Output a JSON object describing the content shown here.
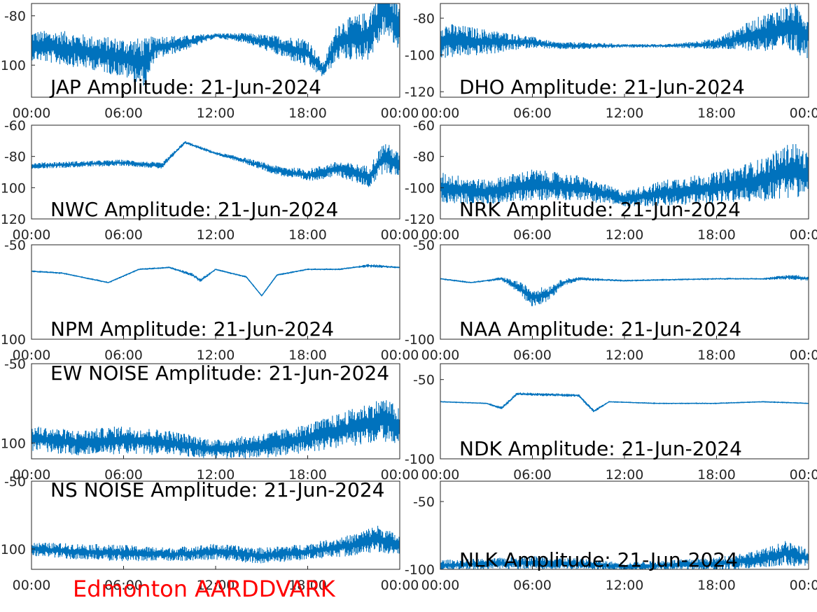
{
  "figure": {
    "station_label": "Edmonton AARDDVARK",
    "station_label_color": "#ff0000",
    "series_color": "#0072bd",
    "x_tick_labels": [
      "00:00",
      "06:00",
      "12:00",
      "18:00",
      "00:00"
    ]
  },
  "chart_data": [
    {
      "type": "line",
      "title": "JAP Amplitude: 21-Jun-2024",
      "y_tick_labels": [
        "-80",
        "-100"
      ],
      "ylim": [
        -113,
        -75
      ],
      "x": [
        "00:00",
        "02:00",
        "04:00",
        "06:00",
        "07:30",
        "08:00",
        "10:00",
        "12:00",
        "14:00",
        "16:00",
        "18:00",
        "19:00",
        "20:00",
        "22:00",
        "23:00",
        "24:00"
      ],
      "values": [
        -92,
        -93,
        -95,
        -97,
        -99,
        -93,
        -91,
        -88,
        -89,
        -92,
        -95,
        -102,
        -90,
        -88,
        -76,
        -85
      ],
      "noise_band": [
        6,
        7,
        7,
        8,
        10,
        5,
        3,
        1,
        2,
        4,
        6,
        3,
        8,
        10,
        12,
        10
      ]
    },
    {
      "type": "line",
      "title": "DHO Amplitude: 21-Jun-2024",
      "y_tick_labels": [
        "-80",
        "-100",
        "-120"
      ],
      "ylim": [
        -123,
        -72
      ],
      "x": [
        "00:00",
        "03:00",
        "06:00",
        "07:30",
        "09:00",
        "12:00",
        "15:00",
        "18:00",
        "21:00",
        "23:00",
        "24:00"
      ],
      "values": [
        -92,
        -93,
        -93,
        -95,
        -95,
        -95,
        -95,
        -94,
        -88,
        -85,
        -90
      ],
      "noise_band": [
        10,
        7,
        3,
        2,
        2,
        1,
        1,
        3,
        10,
        14,
        12
      ]
    },
    {
      "type": "line",
      "title": "NWC Amplitude: 21-Jun-2024",
      "y_tick_labels": [
        "-60",
        "-80",
        "-100",
        "-120"
      ],
      "ylim": [
        -120,
        -60
      ],
      "x": [
        "00:00",
        "03:00",
        "06:00",
        "08:30",
        "10:00",
        "12:00",
        "14:00",
        "16:00",
        "18:00",
        "20:00",
        "22:00",
        "23:00",
        "24:00"
      ],
      "values": [
        -86,
        -85,
        -84,
        -86,
        -71,
        -78,
        -83,
        -89,
        -92,
        -88,
        -93,
        -80,
        -86
      ],
      "noise_band": [
        2,
        2,
        2,
        2,
        1,
        1,
        2,
        3,
        4,
        5,
        7,
        10,
        8
      ]
    },
    {
      "type": "line",
      "title": "NRK Amplitude: 21-Jun-2024",
      "y_tick_labels": [
        "-60",
        "-80",
        "-100",
        "-120"
      ],
      "ylim": [
        -120,
        -60
      ],
      "x": [
        "00:00",
        "03:00",
        "06:00",
        "09:00",
        "12:00",
        "15:00",
        "18:00",
        "21:00",
        "23:00",
        "24:00"
      ],
      "values": [
        -100,
        -103,
        -98,
        -100,
        -107,
        -103,
        -100,
        -95,
        -88,
        -92
      ],
      "noise_band": [
        10,
        8,
        10,
        8,
        5,
        9,
        10,
        14,
        18,
        14
      ]
    },
    {
      "type": "line",
      "title": "NPM Amplitude: 21-Jun-2024",
      "y_tick_labels": [
        "-50",
        "-100"
      ],
      "ylim": [
        -100,
        -50
      ],
      "x": [
        "00:00",
        "02:00",
        "05:00",
        "07:00",
        "09:00",
        "10:30",
        "11:00",
        "12:00",
        "14:00",
        "15:00",
        "16:00",
        "18:00",
        "20:00",
        "21:00",
        "22:00",
        "24:00"
      ],
      "values": [
        -64,
        -65,
        -70,
        -63,
        -62,
        -66,
        -69,
        -63,
        -67,
        -77,
        -66,
        -63,
        -63,
        -62,
        -61,
        -62
      ],
      "noise_band": [
        0.5,
        0.5,
        0.5,
        0.5,
        0.5,
        1,
        1,
        0.5,
        0.5,
        0.5,
        0.5,
        0.5,
        0.5,
        0.5,
        1,
        0.5
      ]
    },
    {
      "type": "line",
      "title": "NAA Amplitude: 21-Jun-2024",
      "y_tick_labels": [
        "-50",
        "-100"
      ],
      "ylim": [
        -100,
        -50
      ],
      "x": [
        "00:00",
        "02:00",
        "03:00",
        "04:00",
        "05:00",
        "06:00",
        "07:00",
        "08:00",
        "09:00",
        "12:00",
        "18:00",
        "21:00",
        "23:00",
        "24:00"
      ],
      "values": [
        -68,
        -70,
        -69,
        -68,
        -72,
        -78,
        -76,
        -70,
        -68,
        -69,
        -68,
        -68,
        -67,
        -68
      ],
      "noise_band": [
        0.5,
        0.5,
        0.5,
        1,
        3,
        5,
        4,
        2,
        1,
        0.5,
        0.5,
        0.5,
        1.5,
        1
      ]
    },
    {
      "type": "line",
      "title": "EW NOISE Amplitude: 21-Jun-2024",
      "y_tick_labels": [
        "-50",
        "-100"
      ],
      "ylim": [
        -110,
        -50
      ],
      "x": [
        "00:00",
        "03:00",
        "06:00",
        "09:00",
        "12:00",
        "15:00",
        "18:00",
        "21:00",
        "23:00",
        "24:00"
      ],
      "values": [
        -97,
        -100,
        -98,
        -100,
        -104,
        -102,
        -97,
        -90,
        -85,
        -90
      ],
      "noise_band": [
        8,
        8,
        9,
        8,
        6,
        8,
        9,
        12,
        14,
        12
      ]
    },
    {
      "type": "line",
      "title": "NDK Amplitude: 21-Jun-2024",
      "y_tick_labels": [
        "-50",
        "-100"
      ],
      "ylim": [
        -100,
        -40
      ],
      "x": [
        "00:00",
        "03:00",
        "04:00",
        "05:00",
        "09:00",
        "10:00",
        "11:00",
        "14:00",
        "18:00",
        "21:00",
        "24:00"
      ],
      "values": [
        -64,
        -65,
        -68,
        -59,
        -60,
        -70,
        -64,
        -65,
        -65,
        -64,
        -65
      ],
      "noise_band": [
        0.5,
        0.5,
        1,
        1,
        1,
        1,
        0.5,
        0.5,
        0.5,
        0.5,
        0.5
      ]
    },
    {
      "type": "line",
      "title": "NS NOISE Amplitude: 21-Jun-2024",
      "y_tick_labels": [
        "-50",
        "-100"
      ],
      "ylim": [
        -115,
        -50
      ],
      "x": [
        "00:00",
        "03:00",
        "06:00",
        "09:00",
        "12:00",
        "15:00",
        "18:00",
        "21:00",
        "22:30",
        "24:00"
      ],
      "values": [
        -100,
        -102,
        -103,
        -104,
        -102,
        -105,
        -102,
        -97,
        -92,
        -98
      ],
      "noise_band": [
        5,
        6,
        6,
        5,
        6,
        6,
        6,
        8,
        10,
        8
      ]
    },
    {
      "type": "line",
      "title": "NLK Amplitude: 21-Jun-2024",
      "y_tick_labels": [
        "-50",
        "-100"
      ],
      "ylim": [
        -100,
        -35
      ],
      "x": [
        "00:00",
        "03:00",
        "06:00",
        "09:00",
        "12:00",
        "15:00",
        "18:00",
        "21:00",
        "22:30",
        "24:00"
      ],
      "values": [
        -97,
        -96,
        -95,
        -96,
        -98,
        -97,
        -96,
        -92,
        -88,
        -92
      ],
      "noise_band": [
        4,
        4,
        5,
        4,
        3,
        4,
        5,
        7,
        9,
        7
      ]
    }
  ]
}
